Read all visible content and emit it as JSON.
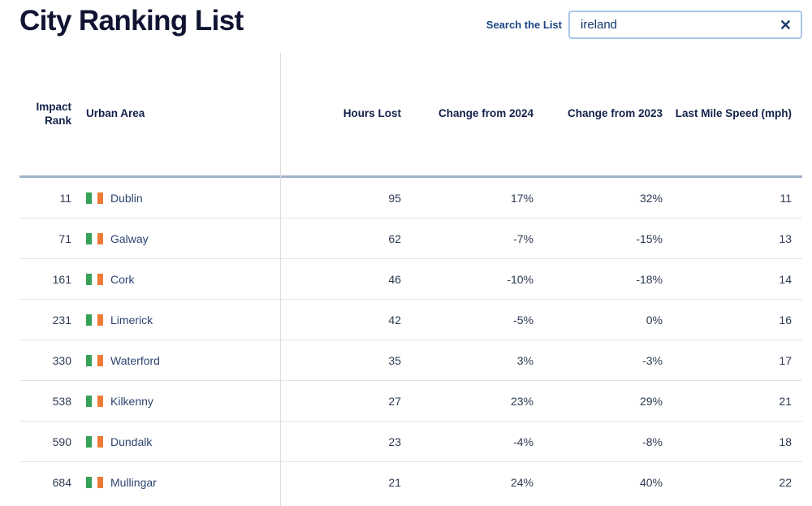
{
  "page": {
    "title": "City Ranking List"
  },
  "search": {
    "label": "Search the List",
    "value": "ireland",
    "clear_icon": "✕"
  },
  "table": {
    "columns": {
      "impact_rank": "Impact Rank",
      "urban_area": "Urban Area",
      "hours_lost": "Hours Lost",
      "change_from_2024": "Change from 2024",
      "change_from_2023": "Change from 2023",
      "last_mile_speed": "Last Mile Speed (mph)"
    },
    "rows": [
      {
        "rank": "11",
        "city": "Dublin",
        "flag": "ireland-flag",
        "hours_lost": "95",
        "change_from_2024": "17%",
        "change_from_2023": "32%",
        "last_mile_speed": "11"
      },
      {
        "rank": "71",
        "city": "Galway",
        "flag": "ireland-flag",
        "hours_lost": "62",
        "change_from_2024": "-7%",
        "change_from_2023": "-15%",
        "last_mile_speed": "13"
      },
      {
        "rank": "161",
        "city": "Cork",
        "flag": "ireland-flag",
        "hours_lost": "46",
        "change_from_2024": "-10%",
        "change_from_2023": "-18%",
        "last_mile_speed": "14"
      },
      {
        "rank": "231",
        "city": "Limerick",
        "flag": "ireland-flag",
        "hours_lost": "42",
        "change_from_2024": "-5%",
        "change_from_2023": "0%",
        "last_mile_speed": "16"
      },
      {
        "rank": "330",
        "city": "Waterford",
        "flag": "ireland-flag",
        "hours_lost": "35",
        "change_from_2024": "3%",
        "change_from_2023": "-3%",
        "last_mile_speed": "17"
      },
      {
        "rank": "538",
        "city": "Kilkenny",
        "flag": "ireland-flag",
        "hours_lost": "27",
        "change_from_2024": "23%",
        "change_from_2023": "29%",
        "last_mile_speed": "21"
      },
      {
        "rank": "590",
        "city": "Dundalk",
        "flag": "ireland-flag",
        "hours_lost": "23",
        "change_from_2024": "-4%",
        "change_from_2023": "-8%",
        "last_mile_speed": "18"
      },
      {
        "rank": "684",
        "city": "Mullingar",
        "flag": "ireland-flag",
        "hours_lost": "21",
        "change_from_2024": "24%",
        "change_from_2023": "40%",
        "last_mile_speed": "22"
      }
    ]
  },
  "colors": {
    "title_text": "#101331",
    "header_text": "#14224a",
    "body_text": "#2e3b52",
    "city_text": "#2c4470",
    "search_accent": "#1c4685",
    "input_border": "#a9c6ea",
    "header_rule": "#9fb2c9",
    "row_divider": "#e4e4e4",
    "column_divider": "#dddddd",
    "flag_green": "#35a257",
    "flag_white": "#ffffff",
    "flag_orange": "#ed7b37"
  }
}
